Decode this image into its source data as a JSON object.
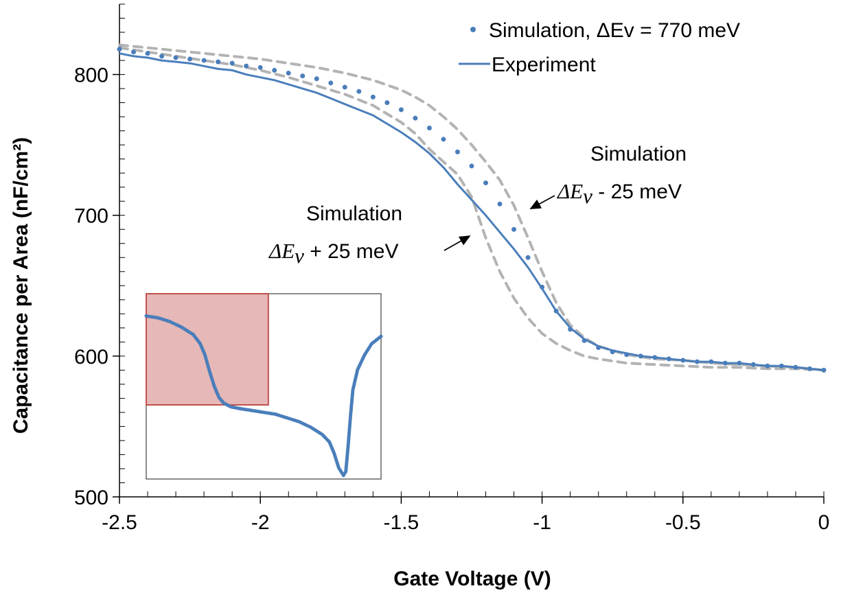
{
  "chart_data": {
    "type": "line",
    "xlabel": "Gate Voltage (V)",
    "ylabel": "Capacitance per Area (nF/cm²)",
    "xlim": [
      -2.5,
      0
    ],
    "ylim": [
      500,
      850
    ],
    "xticks": [
      -2.5,
      -2,
      -1.5,
      -1,
      -0.5,
      0
    ],
    "xtick_labels": [
      "-2.5",
      "-2",
      "-1.5",
      "-1",
      "-0.5",
      "0"
    ],
    "yticks": [
      500,
      600,
      700,
      800
    ],
    "ytick_labels": [
      "500",
      "600",
      "700",
      "800"
    ],
    "grid": false,
    "legend_position": "top-right",
    "colors": {
      "series": "#4a7ebb",
      "bounds": "#b3b3b3",
      "inset_box": "#c0504d",
      "inset_fill": "#e6b8b7"
    },
    "series": [
      {
        "name": "Simulation, ΔEv = 770 meV",
        "style": "dots",
        "x": [
          -2.5,
          -2.45,
          -2.4,
          -2.35,
          -2.3,
          -2.25,
          -2.2,
          -2.15,
          -2.1,
          -2.05,
          -2.0,
          -1.95,
          -1.9,
          -1.85,
          -1.8,
          -1.75,
          -1.7,
          -1.65,
          -1.6,
          -1.55,
          -1.5,
          -1.45,
          -1.4,
          -1.35,
          -1.3,
          -1.25,
          -1.2,
          -1.15,
          -1.1,
          -1.05,
          -1.0,
          -0.95,
          -0.9,
          -0.85,
          -0.8,
          -0.75,
          -0.7,
          -0.65,
          -0.6,
          -0.55,
          -0.5,
          -0.45,
          -0.4,
          -0.35,
          -0.3,
          -0.25,
          -0.2,
          -0.15,
          -0.1,
          -0.05,
          0.0
        ],
        "y": [
          818,
          816,
          815,
          813,
          812,
          811,
          810,
          809,
          808,
          806,
          805,
          803,
          801,
          799,
          797,
          794,
          791,
          788,
          784,
          780,
          775,
          769,
          762,
          754,
          745,
          735,
          723,
          708,
          690,
          670,
          649,
          632,
          619,
          611,
          606,
          603,
          601,
          600,
          599,
          598,
          597,
          596,
          596,
          595,
          595,
          594,
          593,
          593,
          592,
          591,
          590
        ]
      },
      {
        "name": "Experiment",
        "style": "line",
        "x": [
          -2.5,
          -2.45,
          -2.4,
          -2.35,
          -2.3,
          -2.25,
          -2.2,
          -2.15,
          -2.1,
          -2.05,
          -2.0,
          -1.95,
          -1.9,
          -1.85,
          -1.8,
          -1.75,
          -1.7,
          -1.65,
          -1.6,
          -1.55,
          -1.5,
          -1.45,
          -1.4,
          -1.35,
          -1.3,
          -1.25,
          -1.2,
          -1.15,
          -1.1,
          -1.05,
          -1.0,
          -0.95,
          -0.9,
          -0.85,
          -0.8,
          -0.75,
          -0.7,
          -0.65,
          -0.6,
          -0.55,
          -0.5,
          -0.45,
          -0.4,
          -0.35,
          -0.3,
          -0.25,
          -0.2,
          -0.15,
          -0.1,
          -0.05,
          0.0
        ],
        "y": [
          815,
          813,
          812,
          810,
          809,
          808,
          806,
          804,
          803,
          800,
          798,
          796,
          793,
          790,
          787,
          783,
          779,
          775,
          771,
          765,
          759,
          752,
          744,
          734,
          722,
          711,
          700,
          688,
          676,
          663,
          648,
          632,
          620,
          612,
          607,
          604,
          602,
          600,
          599,
          598,
          597,
          596,
          596,
          595,
          595,
          594,
          593,
          593,
          592,
          591,
          590
        ]
      },
      {
        "style": "dashed",
        "x": [
          -2.5,
          -2.4,
          -2.3,
          -2.2,
          -2.1,
          -2.0,
          -1.9,
          -1.8,
          -1.7,
          -1.6,
          -1.5,
          -1.45,
          -1.4,
          -1.35,
          -1.3,
          -1.25,
          -1.2,
          -1.15,
          -1.1,
          -1.05,
          -1.0,
          -0.95,
          -0.9,
          -0.85,
          -0.8,
          -0.7,
          -0.6,
          -0.5,
          -0.4,
          -0.3,
          -0.2,
          -0.1,
          0.0
        ],
        "y": [
          821,
          819,
          817,
          815,
          813,
          811,
          808,
          805,
          801,
          796,
          789,
          784,
          778,
          770,
          761,
          750,
          738,
          725,
          707,
          684,
          660,
          638,
          622,
          613,
          607,
          601,
          598,
          597,
          595,
          594,
          593,
          592,
          590
        ]
      },
      {
        "style": "dashed",
        "x": [
          -2.5,
          -2.4,
          -2.3,
          -2.2,
          -2.1,
          -2.0,
          -1.9,
          -1.8,
          -1.7,
          -1.6,
          -1.5,
          -1.45,
          -1.4,
          -1.35,
          -1.3,
          -1.25,
          -1.2,
          -1.15,
          -1.1,
          -1.05,
          -1.0,
          -0.95,
          -0.9,
          -0.85,
          -0.8,
          -0.7,
          -0.6,
          -0.5,
          -0.4,
          -0.3,
          -0.2,
          -0.1,
          0.0
        ],
        "y": [
          819,
          816,
          813,
          810,
          807,
          803,
          798,
          792,
          786,
          778,
          766,
          758,
          747,
          738,
          729,
          713,
          684,
          660,
          641,
          627,
          616,
          609,
          604,
          600,
          598,
          595,
          594,
          593,
          592,
          592,
          591,
          591,
          590
        ]
      }
    ],
    "annotations": [
      {
        "line1": "Simulation",
        "line2_math": "ΔE",
        "line2_sub": "v",
        "line2_rest": " - 25 meV"
      },
      {
        "line1": "Simulation",
        "line2_math": "ΔE",
        "line2_sub": "v",
        "line2_rest": " + 25 meV"
      }
    ],
    "inset": {
      "highlight_fraction": [
        0.0,
        0.0,
        0.52,
        0.6
      ],
      "points": [
        [
          0.0,
          0.12
        ],
        [
          0.05,
          0.13
        ],
        [
          0.1,
          0.15
        ],
        [
          0.15,
          0.18
        ],
        [
          0.2,
          0.22
        ],
        [
          0.23,
          0.27
        ],
        [
          0.25,
          0.33
        ],
        [
          0.27,
          0.42
        ],
        [
          0.29,
          0.5
        ],
        [
          0.31,
          0.56
        ],
        [
          0.33,
          0.59
        ],
        [
          0.36,
          0.61
        ],
        [
          0.4,
          0.62
        ],
        [
          0.45,
          0.63
        ],
        [
          0.5,
          0.64
        ],
        [
          0.55,
          0.65
        ],
        [
          0.6,
          0.67
        ],
        [
          0.65,
          0.69
        ],
        [
          0.7,
          0.72
        ],
        [
          0.75,
          0.76
        ],
        [
          0.78,
          0.8
        ],
        [
          0.8,
          0.86
        ],
        [
          0.82,
          0.94
        ],
        [
          0.84,
          0.98
        ],
        [
          0.85,
          0.96
        ],
        [
          0.86,
          0.82
        ],
        [
          0.87,
          0.66
        ],
        [
          0.88,
          0.52
        ],
        [
          0.9,
          0.41
        ],
        [
          0.93,
          0.33
        ],
        [
          0.96,
          0.27
        ],
        [
          1.0,
          0.23
        ]
      ]
    }
  }
}
